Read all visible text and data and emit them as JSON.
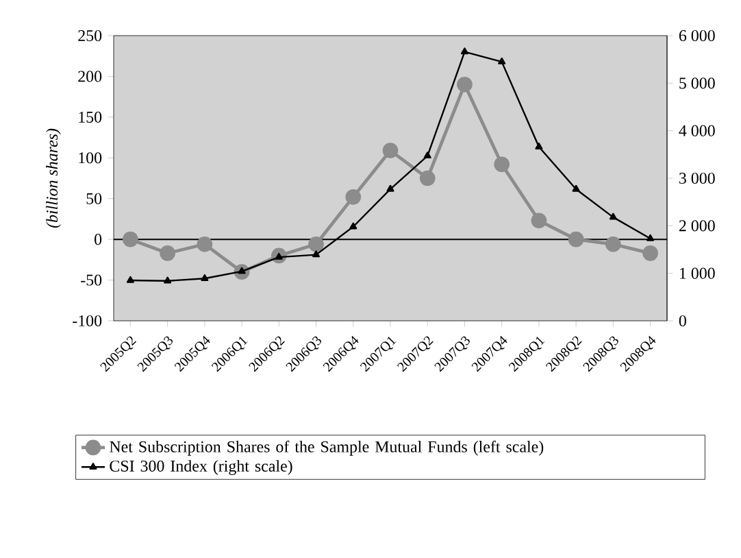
{
  "chart_data": {
    "type": "line",
    "ylabel": "(billion shares)",
    "categories": [
      "2005Q2",
      "2005Q3",
      "2005Q4",
      "2006Q1",
      "2006Q2",
      "2006Q3",
      "2006Q4",
      "2007Q1",
      "2007Q2",
      "2007Q3",
      "2007Q4",
      "2008Q1",
      "2008Q2",
      "2008Q3",
      "2008Q4"
    ],
    "series": [
      {
        "name": "Net Subscription Shares of the Sample Mutual Funds (left scale)",
        "color": "#8c8c8c",
        "marker": "circle",
        "values": [
          0,
          -17,
          -6,
          -40,
          -20,
          -6,
          52,
          109,
          75,
          190,
          92,
          23,
          0,
          -6,
          -17
        ]
      },
      {
        "name": "CSI 300 Index (right scale)",
        "color": "#000000",
        "marker": "triangle",
        "axis": "y2",
        "values": [
          850,
          840,
          890,
          1040,
          1340,
          1390,
          1980,
          2770,
          3470,
          5660,
          5450,
          3660,
          2770,
          2180,
          1730
        ]
      }
    ],
    "ylim": [
      -100,
      250
    ],
    "yticks": [
      -100,
      -50,
      0,
      50,
      100,
      150,
      200,
      250
    ],
    "y2lim": [
      0,
      6000
    ],
    "y2ticks": [
      0,
      {
        "value": 1000,
        "label": "1 000"
      },
      {
        "value": 2000,
        "label": "2 000"
      },
      {
        "value": 3000,
        "label": "3 000"
      },
      {
        "value": 4000,
        "label": "4 000"
      },
      {
        "value": 5000,
        "label": "5 000"
      },
      {
        "value": 6000,
        "label": "6 000"
      }
    ],
    "ref_lines": [
      {
        "axis": "y",
        "value": 0
      }
    ],
    "legend": "bottom"
  }
}
